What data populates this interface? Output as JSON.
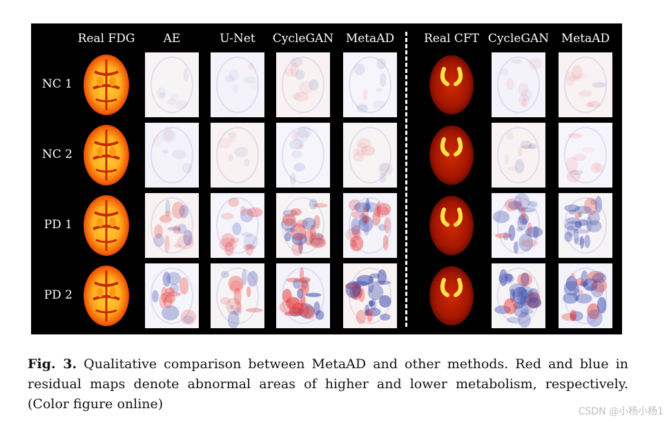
{
  "figure": {
    "columns": [
      "Real FDG",
      "AE",
      "U-Net",
      "CycleGAN",
      "MetaAD",
      "Real CFT",
      "CycleGAN",
      "MetaAD"
    ],
    "rows": [
      "NC 1",
      "NC 2",
      "PD 1",
      "PD 2"
    ],
    "legend_colors": {
      "higher_metabolism": "#e53935",
      "lower_metabolism": "#3949ab",
      "divider": "#ffffff",
      "background": "#000000"
    }
  },
  "caption": {
    "label": "Fig. 3.",
    "text": " Qualitative comparison between MetaAD and other methods. Red and blue in residual maps denote abnormal areas of higher and lower metabolism, respectively. (Color figure online)"
  },
  "watermark": "CSDN @小杨小杨1"
}
